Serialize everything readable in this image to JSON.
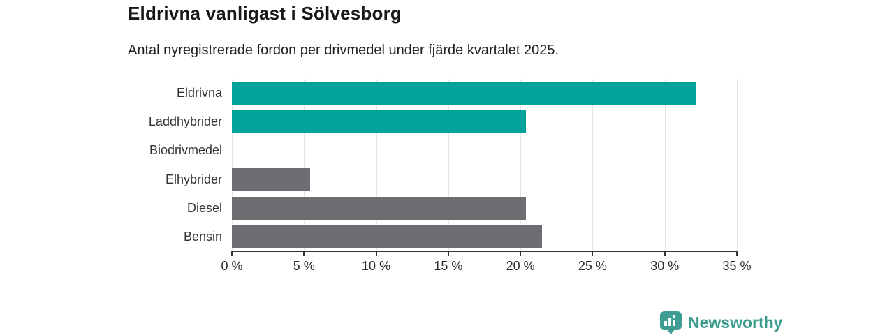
{
  "header": {
    "title": "Eldrivna vanligast i Sölvesborg",
    "subtitle": "Antal nyregistrerade fordon per drivmedel under fjärde kvartalet 2025."
  },
  "chart_data": {
    "type": "bar",
    "orientation": "horizontal",
    "title": "Eldrivna vanligast i Sölvesborg",
    "subtitle": "Antal nyregistrerade fordon per drivmedel under fjärde kvartalet 2025.",
    "categories": [
      "Eldrivna",
      "Laddhybrider",
      "Biodrivmedel",
      "Elhybrider",
      "Diesel",
      "Bensin"
    ],
    "values": [
      32.2,
      20.4,
      0,
      5.4,
      20.4,
      21.5
    ],
    "unit": "%",
    "xlim": [
      0,
      35
    ],
    "x_tick_values": [
      0,
      5,
      10,
      15,
      20,
      25,
      30,
      35
    ],
    "x_tick_labels": [
      "0 %",
      "5 %",
      "10 %",
      "15 %",
      "20 %",
      "25 %",
      "30 %",
      "35 %"
    ],
    "grid": true,
    "legend": false,
    "bar_colors": [
      "#00a39a",
      "#00a39a",
      "#00a39a",
      "#6e6e72",
      "#6e6e72",
      "#6e6e72"
    ],
    "colors": {
      "highlight": "#00a39a",
      "neutral": "#6e6e72",
      "gridline": "#e4e4e4",
      "axis": "#333333"
    }
  },
  "footer": {
    "brand": "Newsworthy",
    "logo_icon": "newsworthy-pin-bar-chart-icon",
    "brand_color": "#3d9c90",
    "logo_fill": "#3e9c92"
  }
}
